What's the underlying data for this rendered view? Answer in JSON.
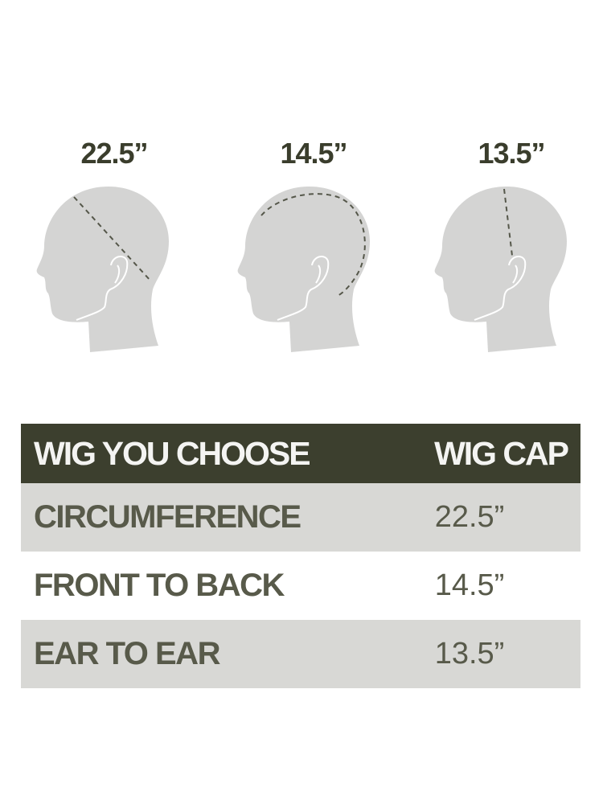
{
  "measurements": [
    {
      "label": "22.5”",
      "type": "circumference"
    },
    {
      "label": "14.5”",
      "type": "front-to-back"
    },
    {
      "label": "13.5”",
      "type": "ear-to-ear"
    }
  ],
  "table": {
    "headers": [
      "WIG YOU CHOOSE",
      "WIG CAP"
    ],
    "rows": [
      {
        "name": "CIRCUMFERENCE",
        "value": "22.5”"
      },
      {
        "name": "FRONT TO BACK",
        "value": "14.5”"
      },
      {
        "name": "EAR TO EAR",
        "value": "13.5”"
      }
    ]
  },
  "colors": {
    "header_bg": "#3c3f2e",
    "row_bg": "#d8d8d5",
    "text": "#585a4a",
    "head": "#d4d4d3"
  }
}
